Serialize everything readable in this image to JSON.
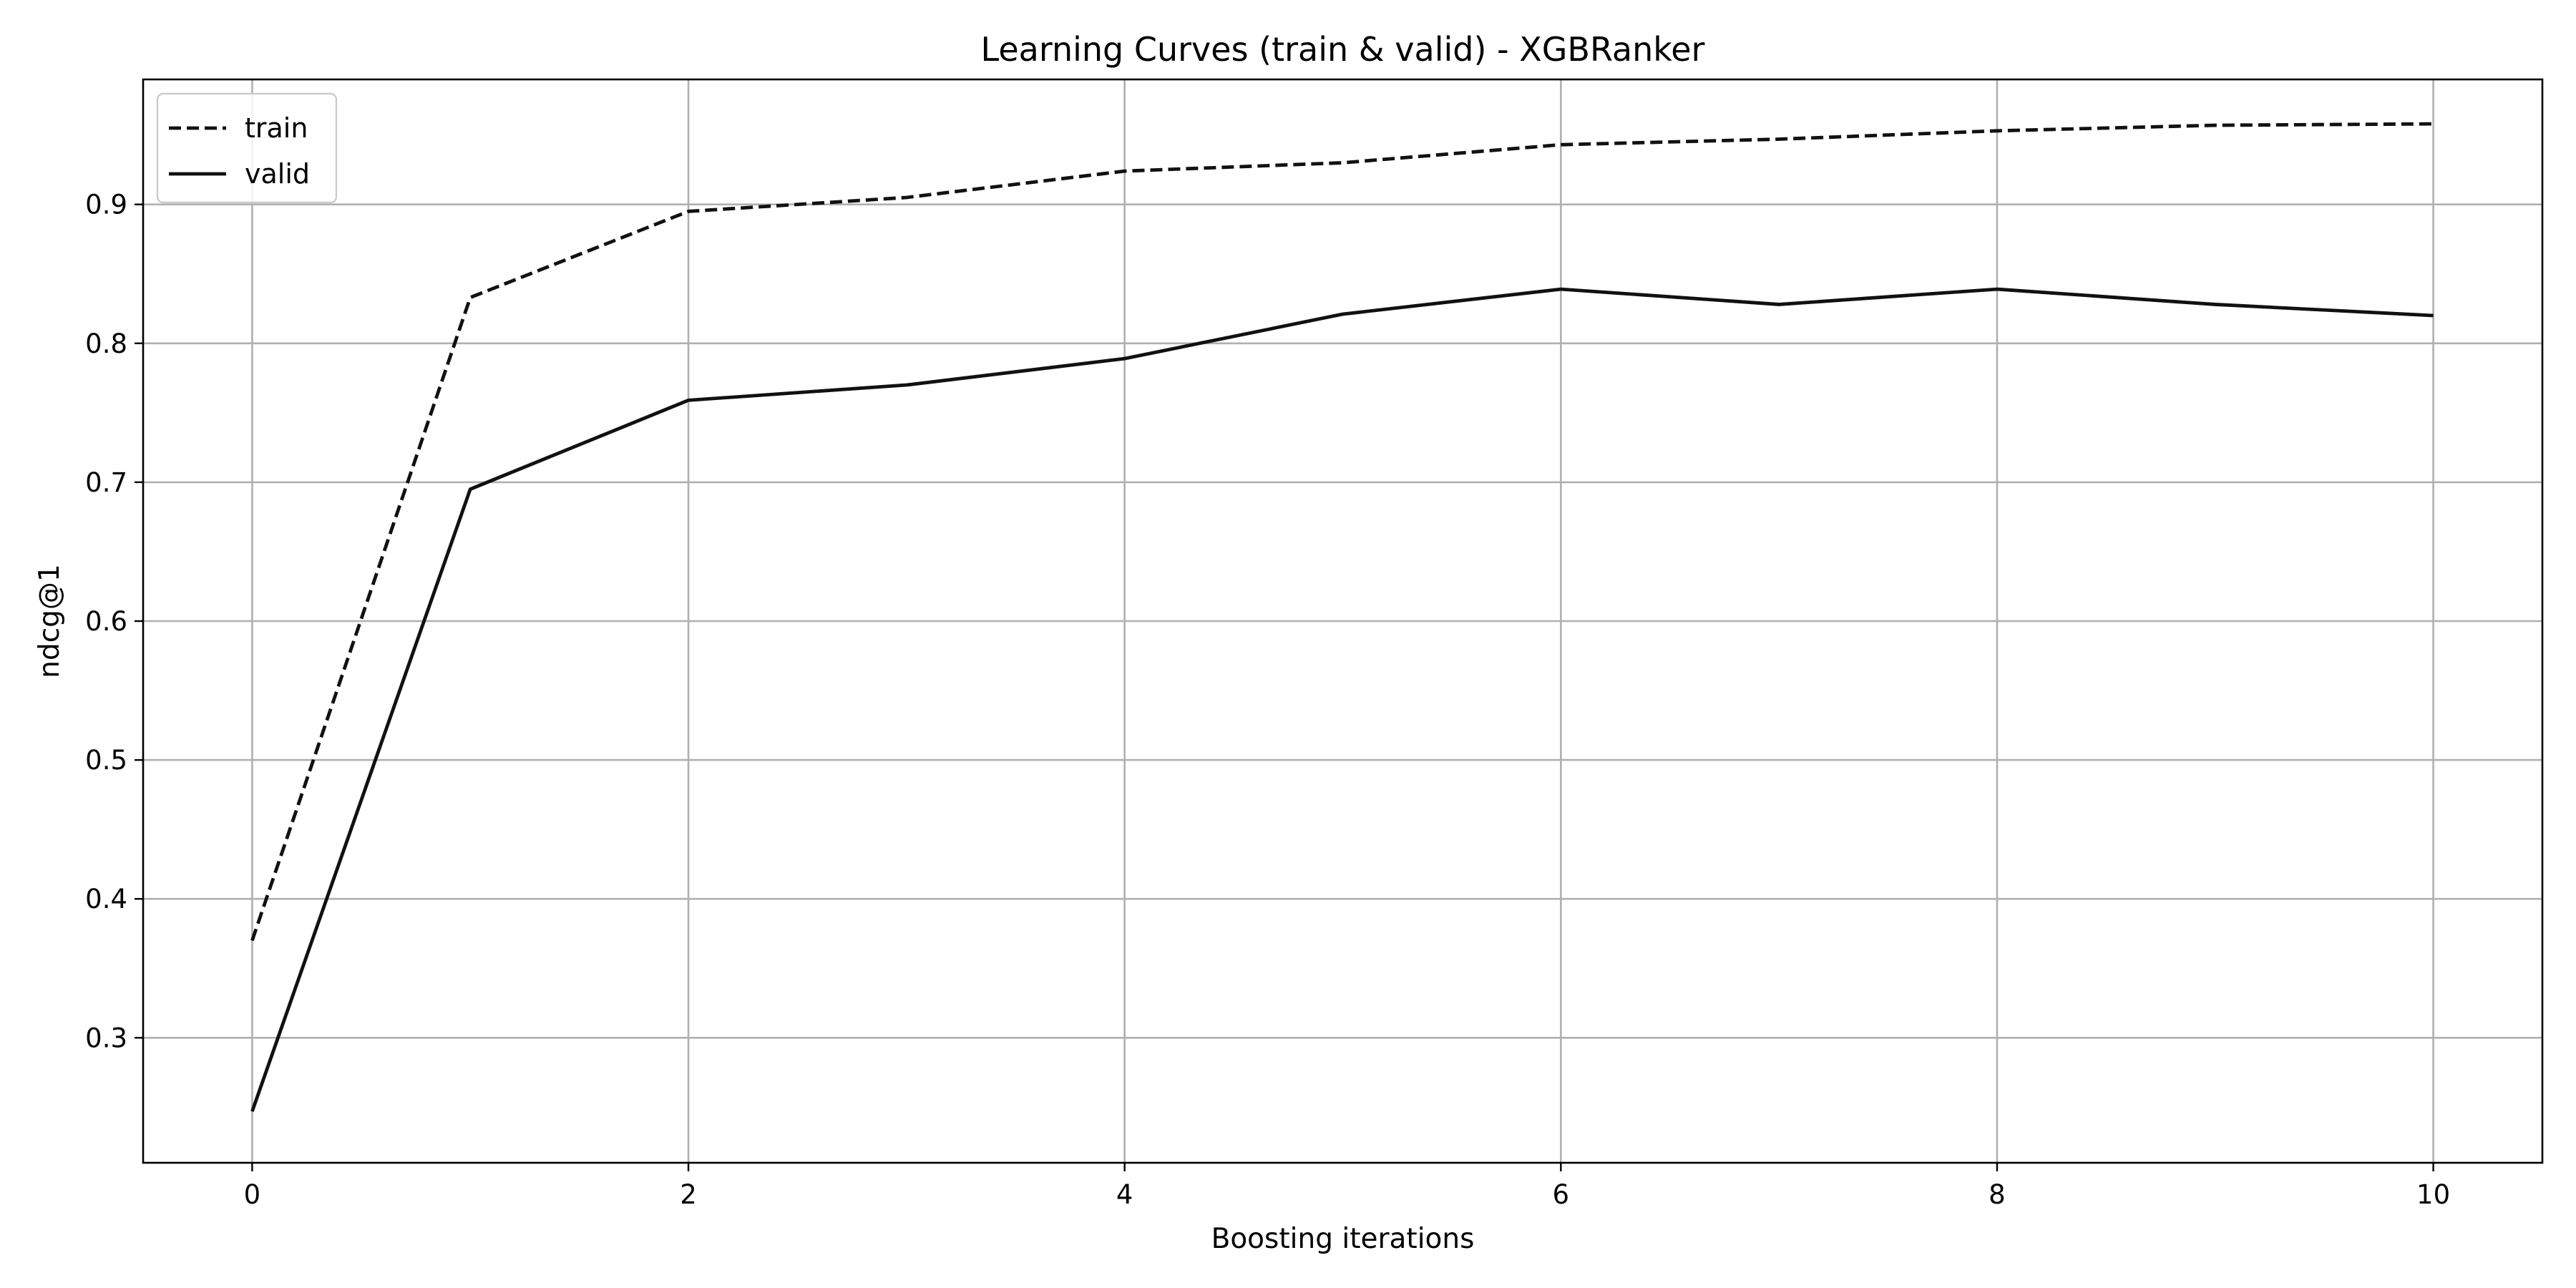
{
  "chart_data": {
    "type": "line",
    "title": "Learning Curves (train & valid) - XGBRanker",
    "xlabel": "Boosting iterations",
    "ylabel": "ndcg@1",
    "xlim": [
      -0.5,
      10.5
    ],
    "ylim": [
      0.21,
      0.99
    ],
    "xticks": [
      0,
      2,
      4,
      6,
      8,
      10
    ],
    "yticks": [
      0.3,
      0.4,
      0.5,
      0.6,
      0.7,
      0.8,
      0.9
    ],
    "grid": true,
    "legend_position": "top-left",
    "x": [
      0,
      1,
      2,
      3,
      4,
      5,
      6,
      7,
      8,
      9,
      10
    ],
    "series": [
      {
        "name": "train",
        "style": "dashed",
        "color": "#111111",
        "values": [
          0.37,
          0.833,
          0.895,
          0.905,
          0.924,
          0.93,
          0.943,
          0.947,
          0.953,
          0.957,
          0.958
        ]
      },
      {
        "name": "valid",
        "style": "solid",
        "color": "#111111",
        "values": [
          0.247,
          0.695,
          0.759,
          0.77,
          0.789,
          0.821,
          0.839,
          0.828,
          0.839,
          0.828,
          0.82
        ]
      }
    ]
  }
}
